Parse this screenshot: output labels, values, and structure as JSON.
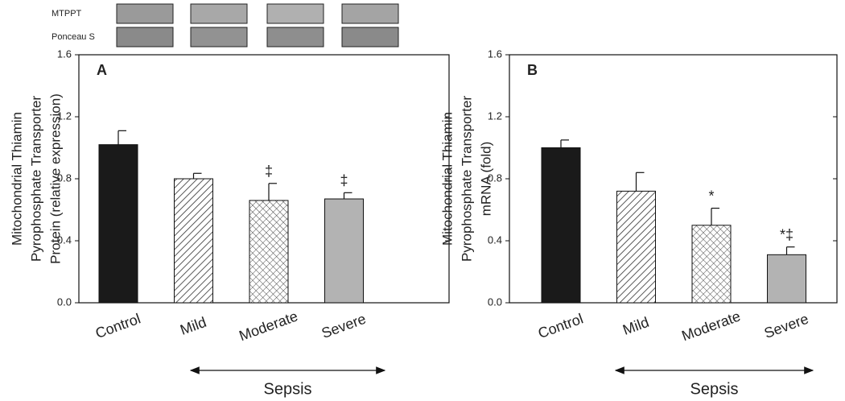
{
  "blot": {
    "labels": [
      "MTPPT",
      "Ponceau S"
    ]
  },
  "chart_data": [
    {
      "type": "bar",
      "panel_label": "A",
      "ylabel": [
        "Mitochondrial Thiamin",
        "Pyrophosphate Transporter",
        "Protein (relative expression)"
      ],
      "categories": [
        "Control",
        "Mild",
        "Moderate",
        "Severe"
      ],
      "values": [
        1.02,
        0.8,
        0.66,
        0.67
      ],
      "errors": [
        0.09,
        0.035,
        0.11,
        0.04
      ],
      "annotations": [
        null,
        null,
        "‡",
        "‡"
      ],
      "fills": [
        "#1a1a1a",
        "hatch",
        "crosshatch",
        "#b3b3b3"
      ],
      "group_label": "Sepsis",
      "ylim": [
        0,
        1.6
      ],
      "yticks": [
        {
          "value": 0,
          "label": "0.0"
        },
        0.4,
        0.8,
        1.2,
        1.6
      ]
    },
    {
      "type": "bar",
      "panel_label": "B",
      "ylabel": [
        "Mitochondrial Thiamin",
        "Pyrophosphate Transporter",
        "mRNA (fold)"
      ],
      "categories": [
        "Control",
        "Mild",
        "Moderate",
        "Severe"
      ],
      "values": [
        1.0,
        0.72,
        0.5,
        0.31
      ],
      "errors": [
        0.05,
        0.12,
        0.11,
        0.05
      ],
      "annotations": [
        null,
        null,
        "*",
        "*‡"
      ],
      "fills": [
        "#1a1a1a",
        "hatch",
        "crosshatch",
        "#b3b3b3"
      ],
      "group_label": "Sepsis",
      "ylim": [
        0,
        1.6
      ],
      "yticks": [
        {
          "value": 0,
          "label": "0.0"
        },
        0.4,
        0.8,
        1.2,
        1.6
      ]
    }
  ]
}
